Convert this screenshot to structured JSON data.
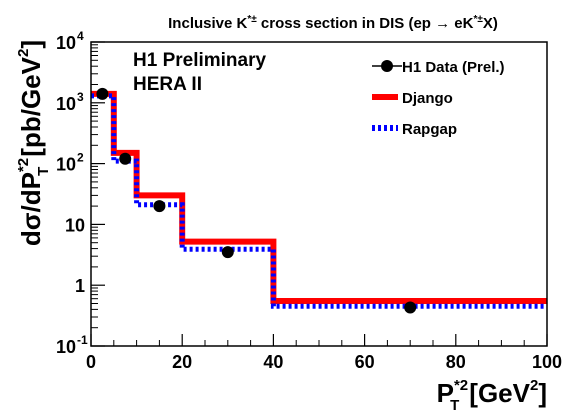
{
  "chart_data": {
    "type": "line",
    "title_prefix": "Inclusive K",
    "title_sup": "*±",
    "title_mid": " cross section in DIS (ep → eK",
    "title_suffix": "X)",
    "ylabel_main": "dσ/dP",
    "ylabel_sub": "T",
    "ylabel_sup": "*2",
    "ylabel_unit": "[pb/GeV",
    "ylabel_unit_sup": "2",
    "ylabel_unit_close": "]",
    "xlabel_main": "P",
    "xlabel_sub": "T",
    "xlabel_sup": "*2",
    "xlabel_unit": "[GeV",
    "xlabel_unit_sup": "2",
    "xlabel_unit_close": "]",
    "annotation_lines": [
      "H1 Preliminary",
      "HERA II"
    ],
    "x_scale": "linear",
    "y_scale": "log",
    "xlim": [
      0,
      100
    ],
    "ylim": [
      0.1,
      10000
    ],
    "x_ticks": [
      0,
      20,
      40,
      60,
      80,
      100
    ],
    "y_ticks": [
      {
        "value": 0.1,
        "base": "10",
        "exp": "-1"
      },
      {
        "value": 1,
        "base": "1",
        "exp": ""
      },
      {
        "value": 10,
        "base": "10",
        "exp": ""
      },
      {
        "value": 100,
        "base": "10",
        "exp": "2"
      },
      {
        "value": 1000,
        "base": "10",
        "exp": "3"
      },
      {
        "value": 10000,
        "base": "10",
        "exp": "4"
      }
    ],
    "bin_edges": [
      0,
      5,
      10,
      20,
      40,
      100
    ],
    "legend_position": "top-right",
    "series": [
      {
        "name": "H1 Data (Prel.)",
        "kind": "points",
        "color": "#000000",
        "x": [
          2.5,
          7.5,
          15,
          30,
          70
        ],
        "y": [
          1400,
          120,
          20,
          3.5,
          0.43
        ]
      },
      {
        "name": "Django",
        "kind": "histogram",
        "color": "#ff0000",
        "values": [
          1400,
          150,
          30,
          5.2,
          0.55
        ]
      },
      {
        "name": "Rapgap",
        "kind": "histogram-dashed",
        "color": "#0000ff",
        "values": [
          1300,
          110,
          21,
          3.9,
          0.45
        ]
      }
    ]
  }
}
